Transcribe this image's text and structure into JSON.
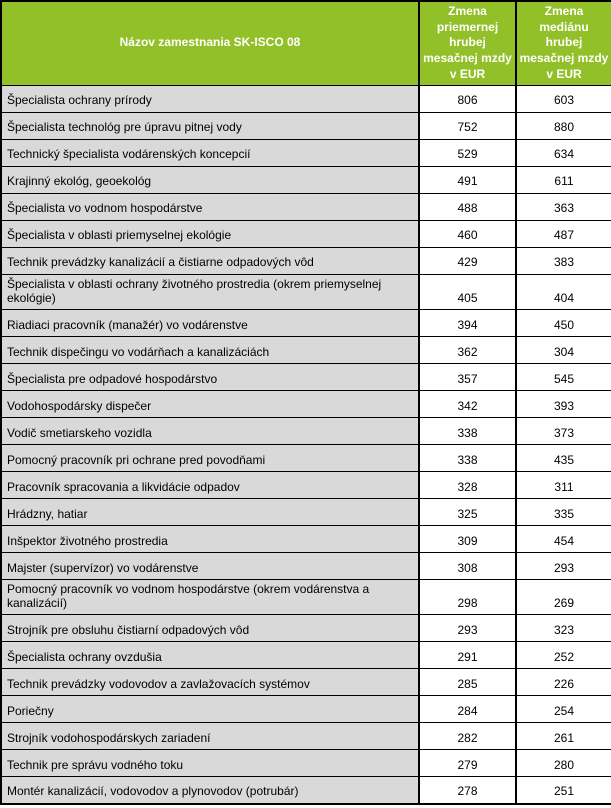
{
  "colors": {
    "header_bg": "#92C029",
    "header_text": "#FFFFFF",
    "row_bg": "#D9D9D9",
    "num_bg": "#FFFFFF",
    "border": "#000000"
  },
  "table": {
    "columns": [
      {
        "key": "name",
        "label": "Názov zamestnania SK-ISCO 08"
      },
      {
        "key": "avg",
        "label": "Zmena\npriemernej\nhrubej\nmesačnej mzdy\nv EUR"
      },
      {
        "key": "median",
        "label": "Zmena\nmediánu\nhrubej\nmesačnej mzdy\nv EUR"
      }
    ],
    "rows": [
      {
        "name": "Špecialista ochrany prírody",
        "avg": 806,
        "median": 603
      },
      {
        "name": "Špecialista technológ pre úpravu pitnej vody",
        "avg": 752,
        "median": 880
      },
      {
        "name": "Technický špecialista vodárenských koncepcií",
        "avg": 529,
        "median": 634
      },
      {
        "name": "Krajinný ekológ, geoekológ",
        "avg": 491,
        "median": 611
      },
      {
        "name": "Špecialista vo vodnom hospodárstve",
        "avg": 488,
        "median": 363
      },
      {
        "name": "Špecialista v oblasti priemyselnej ekológie",
        "avg": 460,
        "median": 487
      },
      {
        "name": "Technik prevádzky kanalizácií a čistiarne odpadových vôd",
        "avg": 429,
        "median": 383
      },
      {
        "name": "Špecialista v oblasti ochrany životného prostredia (okrem priemyselnej ekológie)",
        "avg": 405,
        "median": 404
      },
      {
        "name": "Riadiaci pracovník (manažér) vo vodárenstve",
        "avg": 394,
        "median": 450
      },
      {
        "name": "Technik dispečingu vo vodárňach a kanalizáciách",
        "avg": 362,
        "median": 304
      },
      {
        "name": "Špecialista pre odpadové hospodárstvo",
        "avg": 357,
        "median": 545
      },
      {
        "name": "Vodohospodársky dispečer",
        "avg": 342,
        "median": 393
      },
      {
        "name": "Vodič smetiarskeho vozidla",
        "avg": 338,
        "median": 373
      },
      {
        "name": "Pomocný pracovník pri ochrane pred povodňami",
        "avg": 338,
        "median": 435
      },
      {
        "name": "Pracovník spracovania a likvidácie odpadov",
        "avg": 328,
        "median": 311
      },
      {
        "name": "Hrádzny, hatiar",
        "avg": 325,
        "median": 335
      },
      {
        "name": "Inšpektor životného prostredia",
        "avg": 309,
        "median": 454
      },
      {
        "name": "Majster (supervízor) vo vodárenstve",
        "avg": 308,
        "median": 293
      },
      {
        "name": "Pomocný pracovník vo vodnom hospodárstve (okrem vodárenstva a kanalizácií)",
        "avg": 298,
        "median": 269
      },
      {
        "name": "Strojník pre obsluhu čistiarní odpadových vôd",
        "avg": 293,
        "median": 323
      },
      {
        "name": "Špecialista ochrany ovzdušia",
        "avg": 291,
        "median": 252
      },
      {
        "name": "Technik prevádzky vodovodov a zavlažovacích systémov",
        "avg": 285,
        "median": 226
      },
      {
        "name": "Poriečny",
        "avg": 284,
        "median": 254
      },
      {
        "name": "Strojník vodohospodárskych zariadení",
        "avg": 282,
        "median": 261
      },
      {
        "name": "Technik pre správu vodného toku",
        "avg": 279,
        "median": 280
      },
      {
        "name": "Montér kanalizácií, vodovodov a plynovodov (potrubár)",
        "avg": 278,
        "median": 251
      }
    ]
  }
}
